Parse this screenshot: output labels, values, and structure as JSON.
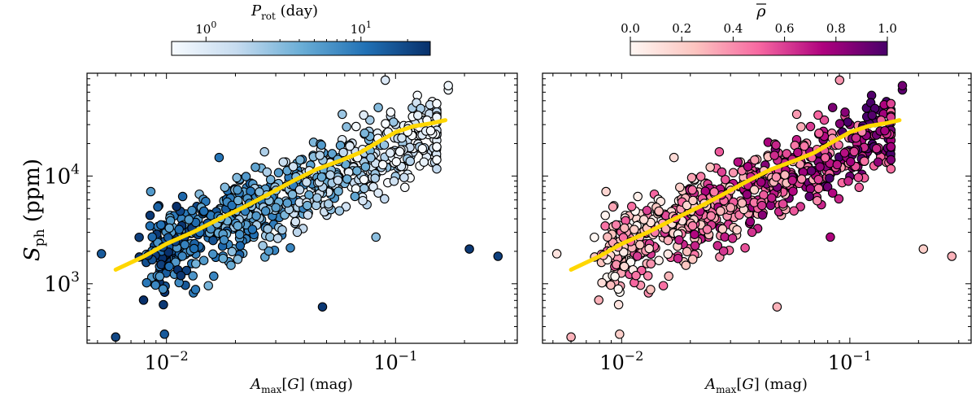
{
  "chart_data": [
    {
      "type": "scatter",
      "panel": "left",
      "xlabel": "A_max[G] (mag)",
      "ylabel": "S_ph (ppm)",
      "xscale": "log",
      "yscale": "log",
      "xlim": [
        0.0045,
        0.34
      ],
      "ylim": [
        280,
        90000
      ],
      "x_tick_labels": [
        "10^-2",
        "10^-1"
      ],
      "y_tick_labels": [
        "10^3",
        "10^4"
      ],
      "colorbar": {
        "label": "P_rot (day)",
        "scale": "log",
        "range": [
          0.6,
          28
        ],
        "tick_labels": [
          "10^0",
          "10^1"
        ],
        "colors": [
          "#f7fbff",
          "#c6dbef",
          "#6baed6",
          "#2171b5",
          "#08306b"
        ],
        "placement": "top"
      },
      "trend_line": {
        "color": "#ffd700",
        "x": [
          0.006,
          0.008,
          0.01,
          0.013,
          0.017,
          0.022,
          0.028,
          0.035,
          0.045,
          0.058,
          0.07,
          0.085,
          0.1,
          0.12,
          0.145,
          0.165
        ],
        "y": [
          1350,
          1800,
          2350,
          3000,
          4000,
          5200,
          6800,
          8800,
          11500,
          14000,
          16500,
          21000,
          25500,
          29000,
          31000,
          33000
        ]
      },
      "notable_points": [
        {
          "x": 0.0052,
          "y": 1900,
          "c": 15
        },
        {
          "x": 0.006,
          "y": 320,
          "c": 20
        },
        {
          "x": 0.0098,
          "y": 340,
          "c": 15
        },
        {
          "x": 0.0097,
          "y": 640,
          "c": 25
        },
        {
          "x": 0.048,
          "y": 610,
          "c": 25
        },
        {
          "x": 0.21,
          "y": 2100,
          "c": 25
        },
        {
          "x": 0.28,
          "y": 1800,
          "c": 22
        },
        {
          "x": 0.17,
          "y": 63000,
          "c": 0.7
        },
        {
          "x": 0.17,
          "y": 69000,
          "c": 0.7
        }
      ]
    },
    {
      "type": "scatter",
      "panel": "right",
      "xlabel": "A_max[G] (mag)",
      "ylabel": "",
      "xscale": "log",
      "yscale": "log",
      "xlim": [
        0.0045,
        0.34
      ],
      "ylim": [
        280,
        90000
      ],
      "x_tick_labels": [
        "10^-2",
        "10^-1"
      ],
      "colorbar": {
        "label": "ρ̄",
        "scale": "linear",
        "range": [
          0.0,
          1.0
        ],
        "tick_labels": [
          "0.0",
          "0.2",
          "0.4",
          "0.6",
          "0.8",
          "1.0"
        ],
        "colors": [
          "#fff7f3",
          "#fcc5c0",
          "#f768a1",
          "#ae017e",
          "#49006a"
        ],
        "placement": "top"
      },
      "trend_line": {
        "color": "#ffd700",
        "x": [
          0.006,
          0.008,
          0.01,
          0.013,
          0.017,
          0.022,
          0.028,
          0.035,
          0.045,
          0.058,
          0.07,
          0.085,
          0.1,
          0.12,
          0.145,
          0.165
        ],
        "y": [
          1350,
          1800,
          2350,
          3000,
          4000,
          5200,
          6800,
          8800,
          11500,
          14000,
          16500,
          21000,
          25500,
          29000,
          31000,
          33000
        ]
      },
      "notable_points": [
        {
          "x": 0.0052,
          "y": 1900,
          "c": 0.1
        },
        {
          "x": 0.006,
          "y": 320,
          "c": 0.3
        },
        {
          "x": 0.0098,
          "y": 340,
          "c": 0.2
        },
        {
          "x": 0.0097,
          "y": 640,
          "c": 0.1
        },
        {
          "x": 0.048,
          "y": 610,
          "c": 0.3
        },
        {
          "x": 0.21,
          "y": 2100,
          "c": 0.2
        },
        {
          "x": 0.28,
          "y": 1800,
          "c": 0.3
        },
        {
          "x": 0.17,
          "y": 63000,
          "c": 0.95
        },
        {
          "x": 0.17,
          "y": 69000,
          "c": 0.9
        }
      ]
    }
  ]
}
